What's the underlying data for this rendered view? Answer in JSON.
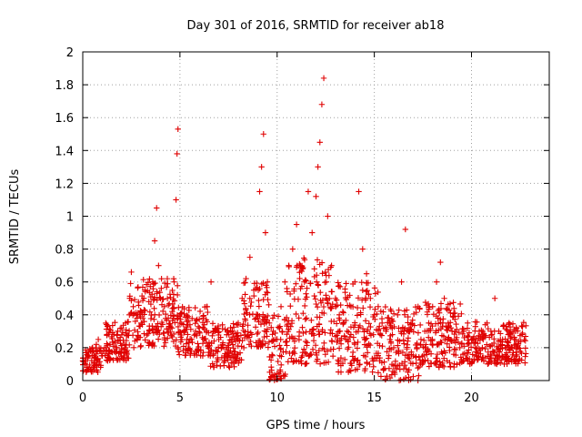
{
  "chart_data": {
    "type": "scatter",
    "title": "Day 301 of 2016, SRMTID for receiver ab18",
    "xlabel": "GPS time / hours",
    "ylabel": "SRMTID / TECUs",
    "xlim": [
      0,
      24
    ],
    "ylim": [
      0,
      2
    ],
    "xticks": [
      "0",
      "5",
      "10",
      "15",
      "20"
    ],
    "xtick_values": [
      0,
      5,
      10,
      15,
      20
    ],
    "yticks": [
      "0",
      "0.2",
      "0.4",
      "0.6",
      "0.8",
      "1",
      "1.2",
      "1.4",
      "1.6",
      "1.8",
      "2"
    ],
    "ytick_values": [
      0,
      0.2,
      0.4,
      0.6,
      0.8,
      1.0,
      1.2,
      1.4,
      1.6,
      1.8,
      2.0
    ],
    "grid": true,
    "marker": "+",
    "series_color": "#e00000",
    "series": [
      {
        "name": "SRMTID",
        "x": [
          0.0,
          0.1,
          0.2,
          0.3,
          0.4,
          0.5,
          0.6,
          0.7,
          0.8,
          0.9,
          1.0,
          1.2,
          1.4,
          1.6,
          1.8,
          2.0,
          2.2,
          2.4,
          2.5,
          2.6,
          2.8,
          3.0,
          3.2,
          3.4,
          3.6,
          3.7,
          3.8,
          3.9,
          4.0,
          4.2,
          4.4,
          4.6,
          4.7,
          4.8,
          4.85,
          4.9,
          5.0,
          5.2,
          5.4,
          5.6,
          5.8,
          6.0,
          6.2,
          6.4,
          6.6,
          6.8,
          7.0,
          7.2,
          7.4,
          7.6,
          7.8,
          8.0,
          8.2,
          8.4,
          8.6,
          8.8,
          9.0,
          9.1,
          9.2,
          9.3,
          9.4,
          9.5,
          9.6,
          9.8,
          10.0,
          10.2,
          10.4,
          10.6,
          10.8,
          11.0,
          11.2,
          11.4,
          11.6,
          11.8,
          12.0,
          12.1,
          12.2,
          12.3,
          12.4,
          12.6,
          12.8,
          13.0,
          13.2,
          13.4,
          13.6,
          13.8,
          14.0,
          14.2,
          14.4,
          14.6,
          14.8,
          15.0,
          15.2,
          15.4,
          15.6,
          15.8,
          16.0,
          16.2,
          16.4,
          16.6,
          16.8,
          17.0,
          17.2,
          17.4,
          17.6,
          17.8,
          18.0,
          18.2,
          18.4,
          18.6,
          18.8,
          19.0,
          19.2,
          19.4,
          19.6,
          19.8,
          20.0,
          20.2,
          20.4,
          20.6,
          20.8,
          21.0,
          21.2,
          21.4,
          21.6,
          21.8,
          22.0,
          22.2,
          22.4,
          22.6
        ],
        "y": [
          0.12,
          0.1,
          0.08,
          0.15,
          0.18,
          0.2,
          0.14,
          0.22,
          0.25,
          0.18,
          0.15,
          0.2,
          0.22,
          0.28,
          0.3,
          0.32,
          0.35,
          0.4,
          0.66,
          0.45,
          0.38,
          0.42,
          0.55,
          0.48,
          0.6,
          0.85,
          1.05,
          0.7,
          0.5,
          0.45,
          0.38,
          0.42,
          0.6,
          1.1,
          1.38,
          1.53,
          0.35,
          0.3,
          0.28,
          0.25,
          0.3,
          0.32,
          0.38,
          0.45,
          0.6,
          0.3,
          0.25,
          0.22,
          0.2,
          0.18,
          0.25,
          0.35,
          0.5,
          0.62,
          0.75,
          0.55,
          0.4,
          1.15,
          1.3,
          1.5,
          0.9,
          0.6,
          0.35,
          0.3,
          0.25,
          0.45,
          0.6,
          0.7,
          0.8,
          0.95,
          0.7,
          0.6,
          1.15,
          0.9,
          1.12,
          1.3,
          1.45,
          1.68,
          1.84,
          1.0,
          0.7,
          0.5,
          0.4,
          0.35,
          0.3,
          0.45,
          0.6,
          1.15,
          0.8,
          0.65,
          0.5,
          0.4,
          0.45,
          0.35,
          0.3,
          0.25,
          0.2,
          0.4,
          0.6,
          0.92,
          0.3,
          0.15,
          0.2,
          0.25,
          0.3,
          0.35,
          0.45,
          0.6,
          0.72,
          0.5,
          0.35,
          0.3,
          0.25,
          0.2,
          0.3,
          0.35,
          0.25,
          0.2,
          0.3,
          0.25,
          0.35,
          0.3,
          0.5,
          0.3,
          0.25,
          0.2,
          0.3,
          0.25,
          0.2,
          0.28
        ]
      }
    ],
    "band_ranges": [
      [
        0.0,
        1.0
      ],
      [
        1.0,
        2.4
      ],
      [
        2.4,
        4.9
      ],
      [
        4.9,
        6.5
      ],
      [
        6.5,
        8.2
      ],
      [
        8.2,
        9.6
      ],
      [
        9.6,
        10.5
      ],
      [
        10.5,
        13.0
      ],
      [
        13.0,
        15.2
      ],
      [
        15.2,
        17.3
      ],
      [
        17.3,
        19.5
      ],
      [
        19.5,
        22.8
      ]
    ],
    "band_levels": [
      [
        0.05,
        0.2
      ],
      [
        0.12,
        0.36
      ],
      [
        0.2,
        0.62
      ],
      [
        0.15,
        0.45
      ],
      [
        0.08,
        0.35
      ],
      [
        0.2,
        0.6
      ],
      [
        0.0,
        0.4
      ],
      [
        0.1,
        0.75
      ],
      [
        0.05,
        0.6
      ],
      [
        0.0,
        0.45
      ],
      [
        0.08,
        0.48
      ],
      [
        0.1,
        0.36
      ]
    ]
  }
}
